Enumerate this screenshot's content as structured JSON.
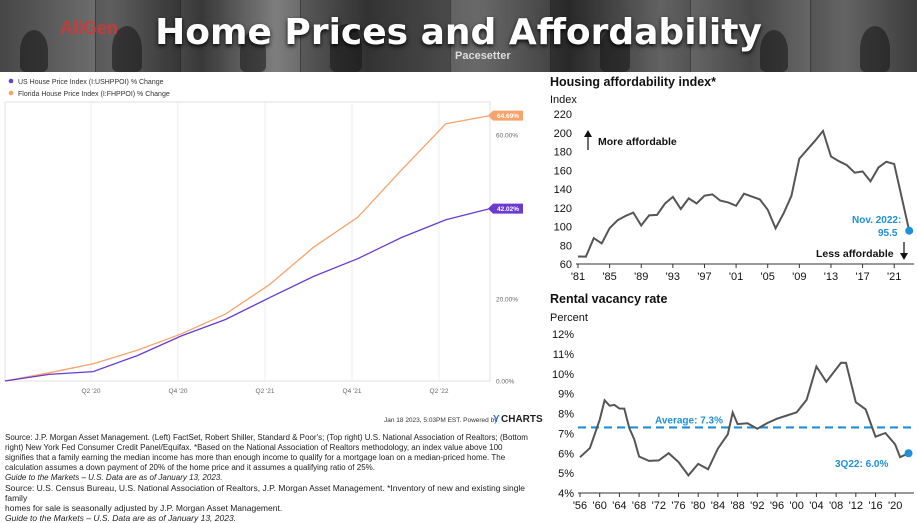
{
  "banner": {
    "title": "Home Prices and Affordability",
    "logo_text": "AllGen",
    "caption_text": "Pacesetter"
  },
  "left_chart": {
    "timestamp": "Jan 18 2023, 5:03PM EST. Powered by",
    "brand_y": "Y",
    "brand_rest": "CHARTS"
  },
  "source_top": {
    "line1": "Source: J.P. Morgan Asset Management. (Left) FactSet, Robert Shiller, Standard & Poor's; (Top right) U.S. National Association of Realtors; (Bottom",
    "line2": "right) New York Fed Consumer Credit Panel/Equifax. *Based on the National Association of Realtors methodology, an index value above 100",
    "line3": "signifies that a family earning the median income has more than enough income to qualify for a mortgage loan on a median-priced home. The",
    "line4": "calculation assumes a down payment of 20% of the home price and it assumes a qualifying ratio of 25%.",
    "line5": "Guide to the Markets – U.S. Data are as of January 13, 2023."
  },
  "source_bottom": {
    "line1": "Source: U.S. Census Bureau, U.S. National Association of Realtors, J.P. Morgan Asset Management. *Inventory of new and existing single family",
    "line2": "homes for sale is seasonally adjusted by J.P. Morgan Asset Management.",
    "line3": "Guide to the Markets – U.S. Data are as of January 13, 2023."
  },
  "colors": {
    "us_series": "#6a3bd1",
    "fl_series": "#f7a36b",
    "dark_line": "#444444",
    "accent_blue": "#1f8fd8"
  },
  "chart_data": [
    {
      "type": "line",
      "id": "ycharts-price-index",
      "title": "",
      "xlabel": "",
      "ylabel": "",
      "x_ticks": [
        "Q2 '20",
        "Q4 '20",
        "Q2 '21",
        "Q4 '21",
        "Q2 '22"
      ],
      "y_ticks": [
        "0.00%",
        "20.00%",
        "60.00%"
      ],
      "ylim": [
        0,
        68
      ],
      "legend_position": "top-left",
      "x": [
        0,
        1,
        2,
        3,
        4,
        5,
        6,
        7,
        8,
        9,
        10,
        11
      ],
      "series": [
        {
          "name": "US House Price Index (I:USHPPOI) % Change",
          "color": "#6a3bd1",
          "values": [
            0,
            1.6,
            2.3,
            6.2,
            11.0,
            15.0,
            20.3,
            25.5,
            29.8,
            35.0,
            39.3,
            42.02
          ],
          "end_label": "42.02%"
        },
        {
          "name": "Florida House Price Index (I:FHPPOI) % Change",
          "color": "#f7a36b",
          "values": [
            0,
            2.0,
            4.2,
            7.5,
            11.5,
            16.3,
            23.5,
            32.6,
            39.9,
            51.5,
            62.7,
            64.69
          ],
          "end_label": "64.69%"
        }
      ]
    },
    {
      "type": "line",
      "id": "housing-affordability",
      "title": "Housing affordability index*",
      "ylabel": "Index",
      "xlabel": "",
      "x_ticks": [
        "'81",
        "'85",
        "'89",
        "'93",
        "'97",
        "'01",
        "'05",
        "'09",
        "'13",
        "'17",
        "'21"
      ],
      "ylim": [
        60,
        220
      ],
      "y_ticks": [
        60,
        80,
        100,
        120,
        140,
        160,
        180,
        200,
        220
      ],
      "annotations": {
        "more": "More affordable",
        "less": "Less affordable",
        "last_label_1": "Nov. 2022:",
        "last_label_2": "95.5"
      },
      "x": [
        1981,
        1982,
        1983,
        1984,
        1985,
        1986,
        1987,
        1988,
        1989,
        1990,
        1991,
        1992,
        1993,
        1994,
        1995,
        1996,
        1997,
        1998,
        1999,
        2000,
        2001,
        2002,
        2003,
        2004,
        2005,
        2006,
        2007,
        2008,
        2009,
        2010,
        2011,
        2012,
        2013,
        2014,
        2015,
        2016,
        2017,
        2018,
        2019,
        2020,
        2021,
        2022.9
      ],
      "values": [
        68,
        70,
        84,
        86,
        95,
        108,
        112,
        112,
        105,
        108,
        115,
        124,
        130,
        122,
        126,
        128,
        131,
        134,
        130,
        122,
        126,
        132,
        133,
        130,
        115,
        102,
        110,
        135,
        172,
        180,
        195,
        198,
        178,
        168,
        165,
        160,
        155,
        152,
        160,
        170,
        168,
        95.5
      ]
    },
    {
      "type": "line",
      "id": "rental-vacancy",
      "title": "Rental vacancy rate",
      "ylabel": "Percent",
      "xlabel": "",
      "x_ticks": [
        "'56",
        "'60",
        "'64",
        "'68",
        "'72",
        "'76",
        "'80",
        "'84",
        "'88",
        "'92",
        "'96",
        "'00",
        "'04",
        "'08",
        "'12",
        "'16",
        "'20"
      ],
      "ylim": [
        4,
        12
      ],
      "y_ticks": [
        "4%",
        "5%",
        "6%",
        "7%",
        "8%",
        "9%",
        "10%",
        "11%",
        "12%"
      ],
      "average": 7.3,
      "average_label": "Average: 7.3%",
      "last_label": "3Q22: 6.0%",
      "x": [
        1956,
        1958,
        1960,
        1961,
        1962,
        1963,
        1964,
        1965,
        1966,
        1967,
        1968,
        1970,
        1972,
        1974,
        1976,
        1978,
        1980,
        1982,
        1984,
        1986,
        1987,
        1988,
        1990,
        1992,
        1994,
        1996,
        1998,
        2000,
        2002,
        2004,
        2006,
        2008,
        2009,
        2010,
        2012,
        2014,
        2016,
        2018,
        2020,
        2021,
        2022.7
      ],
      "values": [
        5.8,
        6.2,
        7.8,
        8.5,
        8.6,
        8.2,
        8.5,
        8.0,
        7.5,
        6.5,
        6.0,
        5.5,
        5.7,
        6.0,
        5.5,
        5.0,
        5.3,
        5.4,
        6.0,
        7.2,
        7.8,
        7.7,
        7.3,
        7.4,
        7.4,
        7.8,
        7.9,
        8.0,
        8.8,
        10.2,
        9.8,
        10.0,
        10.8,
        10.3,
        8.8,
        8.0,
        7.0,
        6.9,
        6.5,
        5.8,
        6.0
      ]
    }
  ]
}
